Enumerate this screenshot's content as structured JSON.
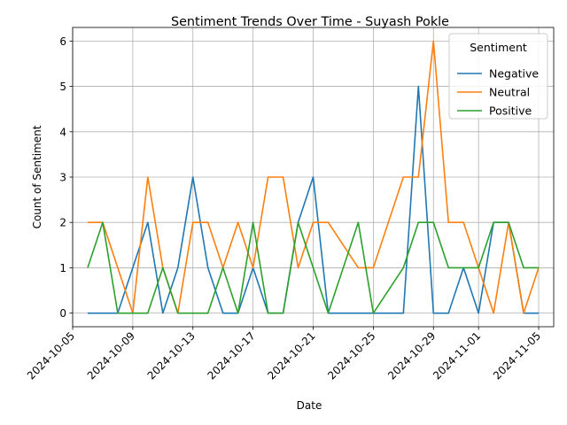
{
  "chart_data": {
    "type": "line",
    "title": "Sentiment Trends Over Time - Suyash Pokle",
    "xlabel": "Date",
    "ylabel": "Count of Sentiment",
    "xlim": [
      "2024-10-05",
      "2024-11-06"
    ],
    "ylim": [
      -0.3,
      6.3
    ],
    "grid": true,
    "legend": {
      "title": "Sentiment",
      "position": "top-right"
    },
    "x_ticks": [
      "2024-10-05",
      "2024-10-09",
      "2024-10-13",
      "2024-10-17",
      "2024-10-21",
      "2024-10-25",
      "2024-10-29",
      "2024-11-01",
      "2024-11-05"
    ],
    "y_ticks": [
      0,
      1,
      2,
      3,
      4,
      5,
      6
    ],
    "x": [
      "2024-10-06",
      "2024-10-07",
      "2024-10-08",
      "2024-10-09",
      "2024-10-10",
      "2024-10-11",
      "2024-10-12",
      "2024-10-13",
      "2024-10-14",
      "2024-10-15",
      "2024-10-16",
      "2024-10-17",
      "2024-10-18",
      "2024-10-19",
      "2024-10-20",
      "2024-10-21",
      "2024-10-22",
      "2024-10-24",
      "2024-10-25",
      "2024-10-27",
      "2024-10-28",
      "2024-10-29",
      "2024-10-30",
      "2024-10-31",
      "2024-11-01",
      "2024-11-02",
      "2024-11-03",
      "2024-11-04",
      "2024-11-05"
    ],
    "series": [
      {
        "name": "Negative",
        "color": "#1f77b4",
        "values": [
          0,
          0,
          0,
          1,
          2,
          0,
          1,
          3,
          1,
          0,
          0,
          1,
          0,
          0,
          2,
          3,
          0,
          0,
          0,
          0,
          5,
          0,
          0,
          1,
          0,
          2,
          2,
          0,
          0
        ]
      },
      {
        "name": "Neutral",
        "color": "#ff7f0e",
        "values": [
          2,
          2,
          1,
          0,
          3,
          1,
          0,
          2,
          2,
          1,
          2,
          1,
          3,
          3,
          1,
          2,
          2,
          1,
          1,
          3,
          3,
          6,
          2,
          2,
          1,
          0,
          2,
          0,
          1
        ]
      },
      {
        "name": "Positive",
        "color": "#2ca02c",
        "values": [
          1,
          2,
          0,
          0,
          0,
          1,
          0,
          0,
          0,
          1,
          0,
          2,
          0,
          0,
          2,
          1,
          0,
          2,
          0,
          1,
          2,
          2,
          1,
          1,
          1,
          2,
          2,
          1,
          1
        ]
      }
    ]
  }
}
